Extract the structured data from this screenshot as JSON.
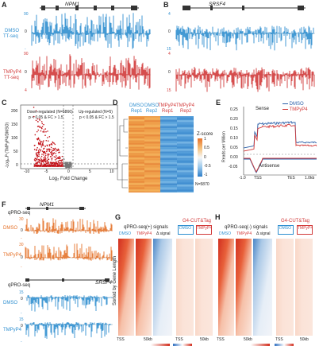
{
  "panelA": {
    "letter": "A",
    "gene": "NPM1",
    "dmso_label": "DMSO",
    "dmso_sub": "TT-seq",
    "tmpy_label": "TMPyP4",
    "tmpy_sub": "TT-seq",
    "ticks": {
      "top_pos": "90",
      "top_zero": "0",
      "top_neg": "-",
      "bot_pos": "90",
      "bot_zero": "0",
      "bot_neg": "4"
    }
  },
  "panelB": {
    "letter": "B",
    "gene": "SRSF4",
    "ticks": {
      "top_pos": "4",
      "top_zero": "0",
      "top_neg": "15",
      "bot_pos": "4",
      "bot_zero": "0",
      "bot_neg": "15"
    }
  },
  "panelC": {
    "letter": "C",
    "ylabel": "-Log₁₀P (TMPyP4/DMSO)",
    "xlabel": "Log₂ Fold Change",
    "down_label": "Down-regulated (N=5866)",
    "down_crit": "p < 0.05 & FC > 1.5",
    "up_label": "Up-regulated (N=5)",
    "up_crit": "p < 0.05 & FC > 1.5",
    "yticks": [
      "200",
      "150",
      "100",
      "50",
      "0"
    ],
    "xticks": [
      "-10",
      "-5",
      "0",
      "5",
      "10"
    ]
  },
  "panelD": {
    "letter": "D",
    "cols": [
      {
        "a": "DMSO",
        "b": "Rep1"
      },
      {
        "a": "DMSO",
        "b": "Rep2"
      },
      {
        "a": "TMPyP4",
        "b": "Rep1"
      },
      {
        "a": "TMPyP4",
        "b": "Rep2"
      }
    ],
    "legend_title": "Z-score",
    "legend_ticks": [
      "1",
      "0.5",
      "0",
      "-0.5",
      "-1"
    ],
    "n_label": "N=5870"
  },
  "panelE": {
    "letter": "E",
    "ylabel": "Reads per Million",
    "sense": "Sense",
    "antisense": "Antisense",
    "leg1": "DMSO",
    "leg2": "TMPyP4",
    "yticks": [
      "0.25",
      "0.20",
      "0.15",
      "0.10",
      "0.05",
      "0.00",
      "-0.05"
    ],
    "xticks": [
      "-1.0",
      "TSS",
      "TES",
      "1.0kb"
    ]
  },
  "panelF": {
    "letter": "F",
    "gene1": "NPM1",
    "gene2": "SRSF4",
    "qpro": "qPRO-seq",
    "qpro2": "qPRO-seq",
    "dmso": "DMSO",
    "tmpy": "TMPyP4",
    "dmso2": "DMSO",
    "tmpy2": "TMPyP4",
    "ticks": [
      "30",
      "0",
      "-",
      "30",
      "0",
      "-",
      "15",
      "0",
      "-",
      "15",
      "0",
      "-"
    ]
  },
  "panelG": {
    "letter": "G",
    "title": "qPRO-seq(+) signals",
    "cut": "G4-CUT&Tag",
    "c1": "DMSO",
    "c2": "TMPyP4",
    "c3": "Δ signal",
    "c4": "DMSO",
    "c5": "TMPyP4",
    "ylabel": "Sorted by Gene Length",
    "x1": "TSS",
    "x2": "50kb",
    "x3": "TSS",
    "x4": "50kb"
  },
  "panelH": {
    "letter": "H",
    "title": "qPRO-seq(-) signals",
    "cut": "G4-CUT&Tag",
    "c1": "DMSO",
    "c2": "TMPyP4",
    "c3": "Δ signal",
    "c4": "DMSO",
    "c5": "TMPyP4",
    "x1": "TSS",
    "x2": "50kb",
    "x3": "TSS",
    "x4": "50kb"
  },
  "colors": {
    "blue": "#2f8fd0",
    "red": "#d23a3a",
    "orange": "#e5722a",
    "darkblue": "#2a5fa8"
  }
}
